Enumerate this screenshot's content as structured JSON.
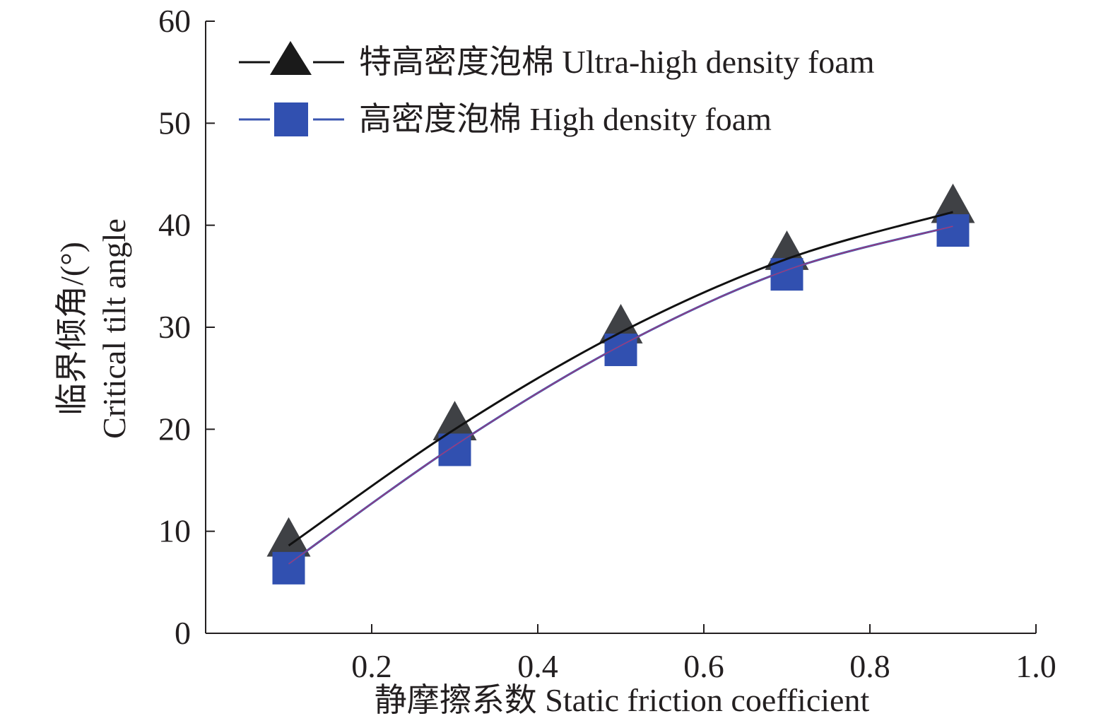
{
  "chart_data": {
    "type": "line",
    "xlabel": "静摩擦系数 Static friction coefficient",
    "ylabel_line1": "临界倾角/(°)",
    "ylabel_line2": "Critical tilt angle",
    "xlim": [
      0.0,
      1.0
    ],
    "ylim": [
      0,
      60
    ],
    "x_ticks": [
      "0.2",
      "0.4",
      "0.6",
      "0.8",
      "1.0"
    ],
    "y_ticks": [
      "0",
      "10",
      "20",
      "30",
      "40",
      "50",
      "60"
    ],
    "grid": false,
    "legend_position": "top-left",
    "series": [
      {
        "name": "特高密度泡棉 Ultra-high density foam",
        "marker": "triangle",
        "line_color": "#111111",
        "marker_color": "#3f4145",
        "x": [
          0.1,
          0.3,
          0.5,
          0.7,
          0.9
        ],
        "y": [
          8.6,
          20.0,
          29.5,
          36.7,
          41.3
        ]
      },
      {
        "name": "高密度泡棉 High density foam",
        "marker": "square",
        "line_color": "#3a55b0",
        "marker_color": "#3150b0",
        "x": [
          0.1,
          0.3,
          0.5,
          0.7,
          0.9
        ],
        "y": [
          6.8,
          18.4,
          28.2,
          35.6,
          39.9
        ]
      }
    ]
  }
}
